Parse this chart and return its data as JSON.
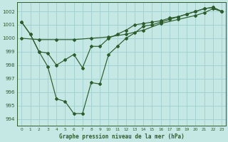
{
  "title": "Graphe pression niveau de la mer (hPa)",
  "background_color": "#c5e8e5",
  "grid_color": "#9ecece",
  "line_color": "#2d5c2d",
  "x_ticks": [
    0,
    1,
    2,
    3,
    4,
    5,
    6,
    7,
    8,
    9,
    10,
    11,
    12,
    13,
    14,
    15,
    16,
    17,
    18,
    19,
    20,
    21,
    22,
    23
  ],
  "ylim": [
    993.5,
    1002.7
  ],
  "yticks": [
    994,
    995,
    996,
    997,
    998,
    999,
    1000,
    1001,
    1002
  ],
  "lineA_x": [
    0,
    2,
    4,
    6,
    8,
    10,
    12,
    14,
    16,
    18,
    20,
    21,
    22,
    23
  ],
  "lineA_y": [
    1000.0,
    999.9,
    999.9,
    999.9,
    1000.0,
    1000.1,
    1000.3,
    1000.6,
    1001.1,
    1001.4,
    1001.7,
    1001.9,
    1002.2,
    1002.0
  ],
  "lineB_x": [
    0,
    1,
    2,
    3,
    4,
    5,
    6,
    7,
    8,
    9,
    10,
    11,
    12,
    13,
    14,
    15,
    16,
    17,
    18,
    19,
    20,
    21,
    22,
    23
  ],
  "lineB_y": [
    1001.2,
    1000.3,
    999.0,
    997.9,
    995.5,
    995.3,
    994.4,
    994.4,
    996.7,
    996.6,
    998.8,
    999.4,
    1000.0,
    1000.4,
    1000.9,
    1001.0,
    1001.2,
    1001.4,
    1001.6,
    1001.8,
    1002.0,
    1002.2,
    1002.3,
    1002.0
  ],
  "lineC_x": [
    0,
    1,
    2,
    3,
    4,
    5,
    6,
    7,
    8,
    9,
    10,
    11,
    12,
    13,
    14,
    15,
    16,
    17,
    18,
    19,
    20,
    21,
    22,
    23
  ],
  "lineC_y": [
    1001.2,
    1000.3,
    999.0,
    998.9,
    998.0,
    998.4,
    998.8,
    997.8,
    999.4,
    999.4,
    1000.0,
    1000.3,
    1000.6,
    1001.0,
    1001.1,
    1001.2,
    1001.3,
    1001.5,
    1001.6,
    1001.8,
    1002.0,
    1002.2,
    1002.3,
    1002.0
  ]
}
